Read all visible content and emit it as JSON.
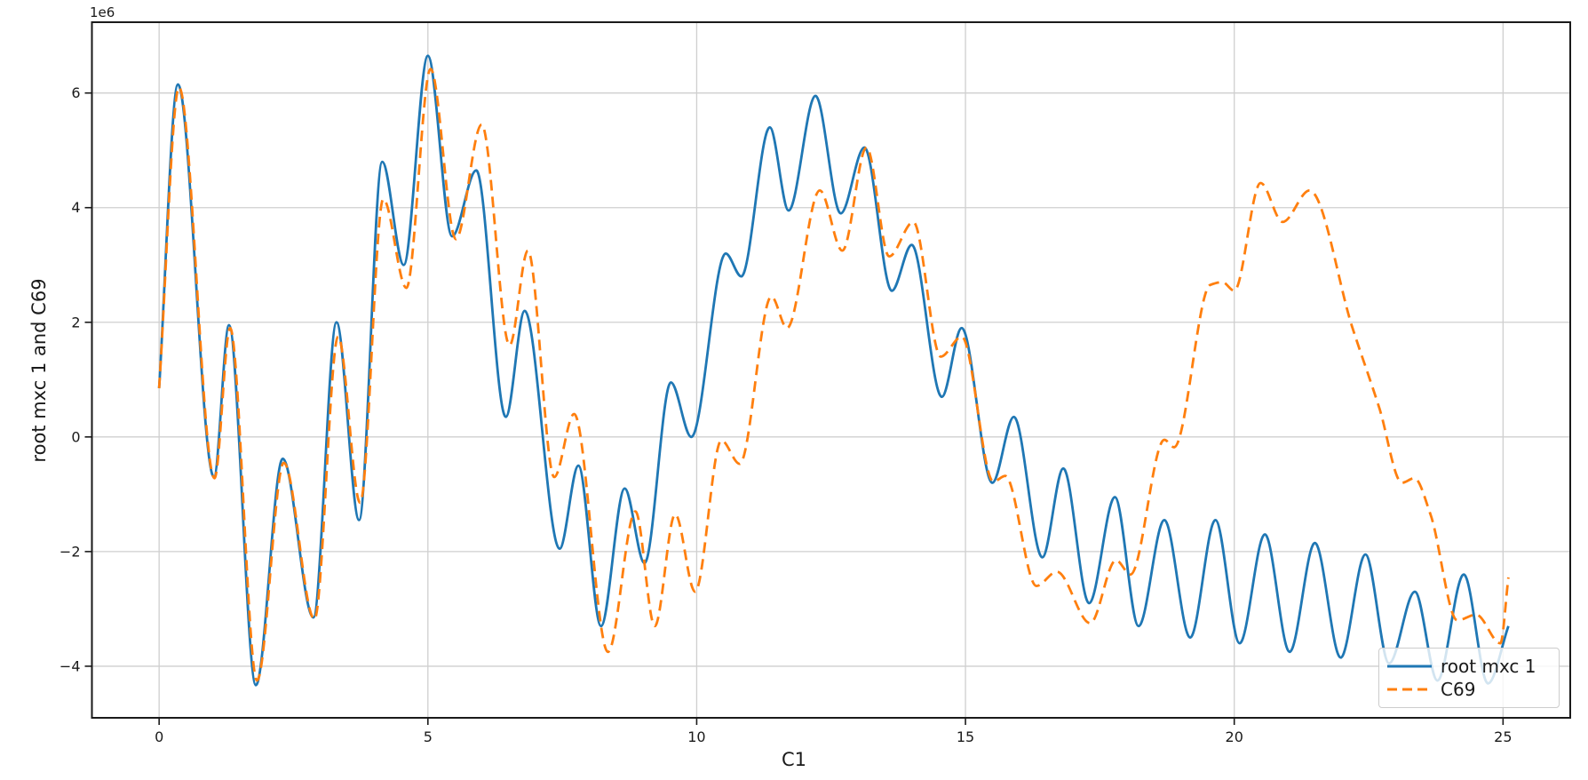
{
  "figure": {
    "xlabel": "C1",
    "ylabel": "root mxc 1 and C69",
    "offset_text": "1e6"
  },
  "legend": {
    "position": "lower right",
    "entries": [
      {
        "label": "root mxc 1",
        "color": "#1f77b4",
        "style": "solid"
      },
      {
        "label": "C69",
        "color": "#ff7f0e",
        "style": "dashed"
      }
    ]
  },
  "chart_data": {
    "type": "line",
    "title": "",
    "xlabel": "C1",
    "ylabel": "root mxc 1 and C69",
    "y_offset_multiplier": "1e6",
    "grid": true,
    "legend_position": "lower right",
    "xlim": [
      -1.25,
      26.25
    ],
    "ylim": [
      -4.9,
      7.235
    ],
    "x_ticks": [
      0,
      5,
      10,
      15,
      20,
      25
    ],
    "y_ticks": [
      6,
      4,
      2,
      0,
      -2,
      -4
    ],
    "grid_color": "#cfcfcf",
    "spine_color": "#1a1a1a",
    "series": [
      {
        "name": "root mxc 1",
        "color": "#1f77b4",
        "style": "solid",
        "points": [
          [
            0,
            0.85
          ],
          [
            0.35,
            6.15
          ],
          [
            1.02,
            -0.7
          ],
          [
            1.3,
            1.95
          ],
          [
            1.8,
            -4.33
          ],
          [
            2.3,
            -0.38
          ],
          [
            2.87,
            -3.15
          ],
          [
            3.3,
            2
          ],
          [
            3.72,
            -1.45
          ],
          [
            4.15,
            4.8
          ],
          [
            4.55,
            3
          ],
          [
            5,
            6.65
          ],
          [
            5.45,
            3.5
          ],
          [
            5.9,
            4.65
          ],
          [
            6.45,
            0.35
          ],
          [
            6.8,
            2.2
          ],
          [
            7.45,
            -1.95
          ],
          [
            7.8,
            -0.5
          ],
          [
            8.22,
            -3.3
          ],
          [
            8.66,
            -0.9
          ],
          [
            9.03,
            -2.2
          ],
          [
            9.52,
            0.95
          ],
          [
            9.9,
            0
          ],
          [
            10.54,
            3.2
          ],
          [
            10.83,
            2.8
          ],
          [
            11.36,
            5.4
          ],
          [
            11.71,
            3.95
          ],
          [
            12.21,
            5.95
          ],
          [
            12.68,
            3.9
          ],
          [
            13.12,
            5.05
          ],
          [
            13.63,
            2.55
          ],
          [
            14,
            3.35
          ],
          [
            14.56,
            0.7
          ],
          [
            14.93,
            1.9
          ],
          [
            15.5,
            -0.8
          ],
          [
            15.9,
            0.35
          ],
          [
            16.43,
            -2.1
          ],
          [
            16.82,
            -0.55
          ],
          [
            17.3,
            -2.9
          ],
          [
            17.78,
            -1.05
          ],
          [
            18.22,
            -3.3
          ],
          [
            18.7,
            -1.45
          ],
          [
            19.18,
            -3.5
          ],
          [
            19.65,
            -1.45
          ],
          [
            20.1,
            -3.6
          ],
          [
            20.57,
            -1.7
          ],
          [
            21.03,
            -3.75
          ],
          [
            21.5,
            -1.85
          ],
          [
            21.98,
            -3.85
          ],
          [
            22.44,
            -2.05
          ],
          [
            22.88,
            -3.95
          ],
          [
            23.36,
            -2.7
          ],
          [
            23.78,
            -4.25
          ],
          [
            24.27,
            -2.4
          ],
          [
            24.72,
            -4.3
          ],
          [
            25.1,
            -3.3
          ]
        ]
      },
      {
        "name": "C69",
        "color": "#ff7f0e",
        "style": "dashed",
        "points": [
          [
            0,
            0.85
          ],
          [
            0.37,
            6.1
          ],
          [
            1.03,
            -0.72
          ],
          [
            1.32,
            1.9
          ],
          [
            1.82,
            -4.25
          ],
          [
            2.32,
            -0.45
          ],
          [
            2.89,
            -3.18
          ],
          [
            3.33,
            1.75
          ],
          [
            3.74,
            -1.15
          ],
          [
            4.17,
            4.15
          ],
          [
            4.6,
            2.6
          ],
          [
            5.05,
            6.42
          ],
          [
            5.52,
            3.45
          ],
          [
            6,
            5.45
          ],
          [
            6.52,
            1.6
          ],
          [
            6.86,
            3.25
          ],
          [
            7.35,
            -0.7
          ],
          [
            7.72,
            0.4
          ],
          [
            8.35,
            -3.75
          ],
          [
            8.86,
            -1.3
          ],
          [
            9.22,
            -3.3
          ],
          [
            9.6,
            -1.35
          ],
          [
            9.97,
            -2.7
          ],
          [
            10.46,
            -0.06
          ],
          [
            10.8,
            -0.47
          ],
          [
            11.39,
            2.45
          ],
          [
            11.68,
            1.9
          ],
          [
            12.29,
            4.3
          ],
          [
            12.71,
            3.25
          ],
          [
            13.16,
            5.05
          ],
          [
            13.58,
            3.15
          ],
          [
            14.03,
            3.75
          ],
          [
            14.54,
            1.4
          ],
          [
            14.93,
            1.75
          ],
          [
            15.52,
            -0.78
          ],
          [
            15.74,
            -0.68
          ],
          [
            16.32,
            -2.6
          ],
          [
            16.7,
            -2.35
          ],
          [
            17.32,
            -3.25
          ],
          [
            17.8,
            -2.15
          ],
          [
            18.07,
            -2.4
          ],
          [
            18.7,
            -0.05
          ],
          [
            18.88,
            -0.18
          ],
          [
            19.55,
            2.65
          ],
          [
            19.78,
            2.7
          ],
          [
            20,
            2.55
          ],
          [
            20.49,
            4.43
          ],
          [
            20.9,
            3.75
          ],
          [
            21.4,
            4.3
          ],
          [
            22.2,
            1.9
          ],
          [
            22.7,
            0.5
          ],
          [
            23.12,
            -0.8
          ],
          [
            23.35,
            -0.72
          ],
          [
            23.65,
            -1.35
          ],
          [
            24.15,
            -3.2
          ],
          [
            24.5,
            -3.1
          ],
          [
            24.95,
            -3.6
          ],
          [
            25.1,
            -2.45
          ]
        ]
      }
    ]
  }
}
